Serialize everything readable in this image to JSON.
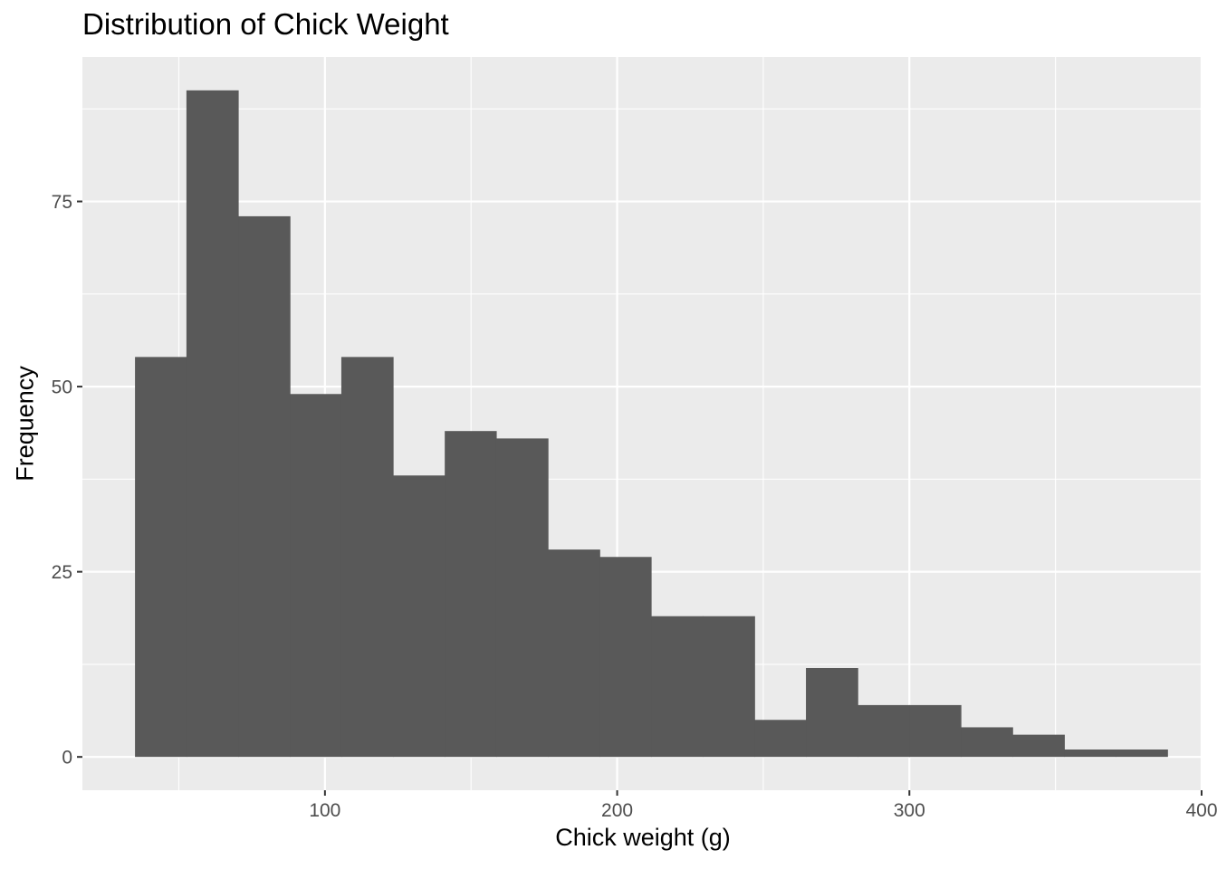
{
  "chart_data": {
    "type": "bar",
    "title": "Distribution of Chick Weight",
    "xlabel": "Chick weight (g)",
    "ylabel": "Frequency",
    "bins": [
      {
        "x0": 35.0,
        "x1": 52.6,
        "count": 54
      },
      {
        "x0": 52.6,
        "x1": 70.3,
        "count": 90
      },
      {
        "x0": 70.3,
        "x1": 88.0,
        "count": 73
      },
      {
        "x0": 88.0,
        "x1": 105.6,
        "count": 49
      },
      {
        "x0": 105.6,
        "x1": 123.3,
        "count": 54
      },
      {
        "x0": 123.3,
        "x1": 141.0,
        "count": 38
      },
      {
        "x0": 141.0,
        "x1": 158.6,
        "count": 44
      },
      {
        "x0": 158.6,
        "x1": 176.3,
        "count": 43
      },
      {
        "x0": 176.3,
        "x1": 194.0,
        "count": 28
      },
      {
        "x0": 194.0,
        "x1": 211.6,
        "count": 27
      },
      {
        "x0": 211.6,
        "x1": 229.3,
        "count": 19
      },
      {
        "x0": 229.3,
        "x1": 247.0,
        "count": 19
      },
      {
        "x0": 247.0,
        "x1": 264.6,
        "count": 5
      },
      {
        "x0": 264.6,
        "x1": 282.3,
        "count": 12
      },
      {
        "x0": 282.3,
        "x1": 300.0,
        "count": 7
      },
      {
        "x0": 300.0,
        "x1": 317.6,
        "count": 7
      },
      {
        "x0": 317.6,
        "x1": 335.3,
        "count": 4
      },
      {
        "x0": 335.3,
        "x1": 353.0,
        "count": 3
      },
      {
        "x0": 353.0,
        "x1": 370.6,
        "count": 1
      },
      {
        "x0": 370.6,
        "x1": 388.3,
        "count": 1
      }
    ],
    "x_ticks": [
      100,
      200,
      300,
      400
    ],
    "y_ticks": [
      0,
      25,
      50,
      75
    ],
    "xlim": [
      17,
      400
    ],
    "ylim": [
      -4.5,
      94.5
    ],
    "grid": true,
    "colors": {
      "bar": "#595959",
      "panel_background": "#ebebeb",
      "grid": "#ffffff",
      "tick_text": "#4d4d4d"
    }
  }
}
